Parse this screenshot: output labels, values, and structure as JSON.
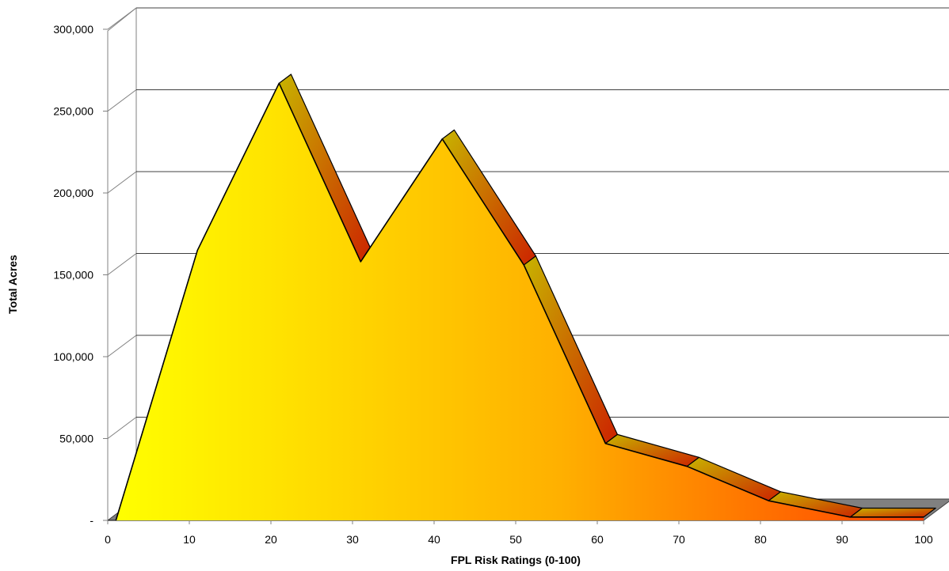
{
  "chart_data": {
    "type": "area",
    "xlabel": "FPL Risk Ratings (0-100)",
    "ylabel": "Total Acres",
    "x": [
      1,
      11,
      21,
      31,
      41,
      51,
      61,
      71,
      81,
      91,
      100
    ],
    "values": [
      0,
      165000,
      267000,
      158000,
      233000,
      156000,
      47000,
      33000,
      12000,
      2000,
      2000
    ],
    "xlim": [
      0,
      100
    ],
    "ylim": [
      0,
      300000
    ],
    "xticks": [
      "0",
      "10",
      "20",
      "30",
      "40",
      "50",
      "60",
      "70",
      "80",
      "90",
      "100"
    ],
    "yticks": [
      "-",
      "50,000",
      "100,000",
      "150,000",
      "200,000",
      "250,000",
      "300,000"
    ],
    "grid": true,
    "style": "3d",
    "gradient_colors": [
      "#ffff00",
      "#ffb000",
      "#ff4000"
    ],
    "ribbon_colors": [
      "#c8b400",
      "#cc2200"
    ],
    "floor_color": "#808080"
  }
}
